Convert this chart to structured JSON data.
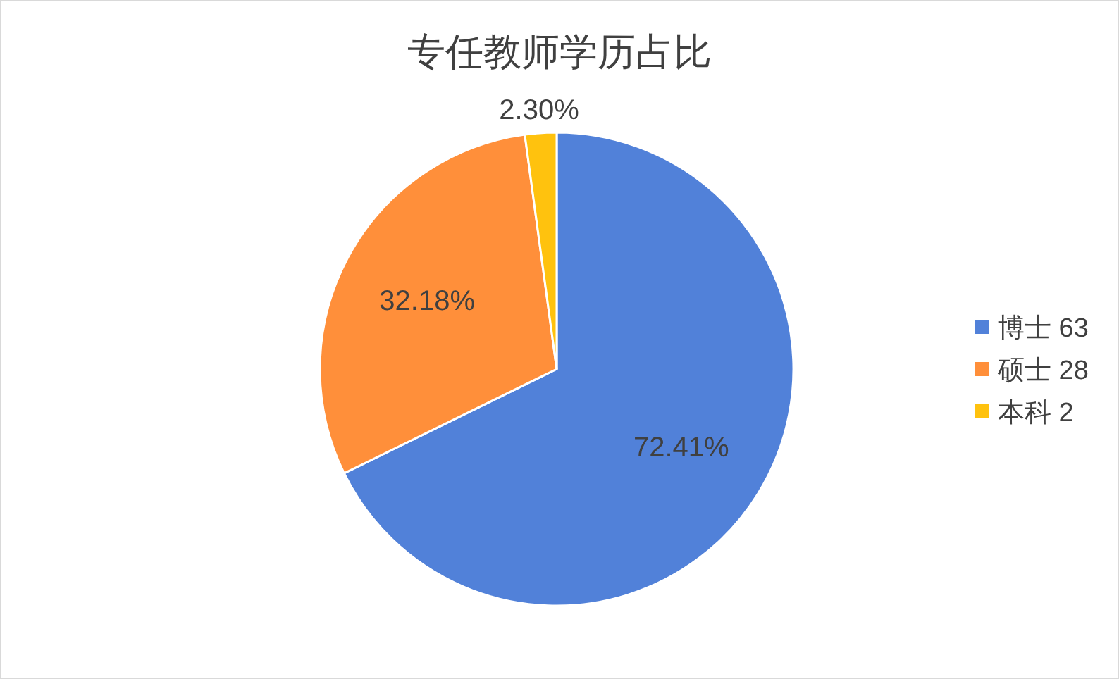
{
  "chart_data": {
    "type": "pie",
    "title": "专任教师学历占比",
    "categories": [
      "博士 63",
      "硕士 28",
      "本科 2"
    ],
    "values": [
      72.41,
      32.18,
      2.3
    ],
    "colors": [
      "#5181d9",
      "#ff8f3a",
      "#ffc20e"
    ],
    "value_labels": [
      "72.41%",
      "32.18%",
      "2.30%"
    ],
    "legend": "right"
  }
}
